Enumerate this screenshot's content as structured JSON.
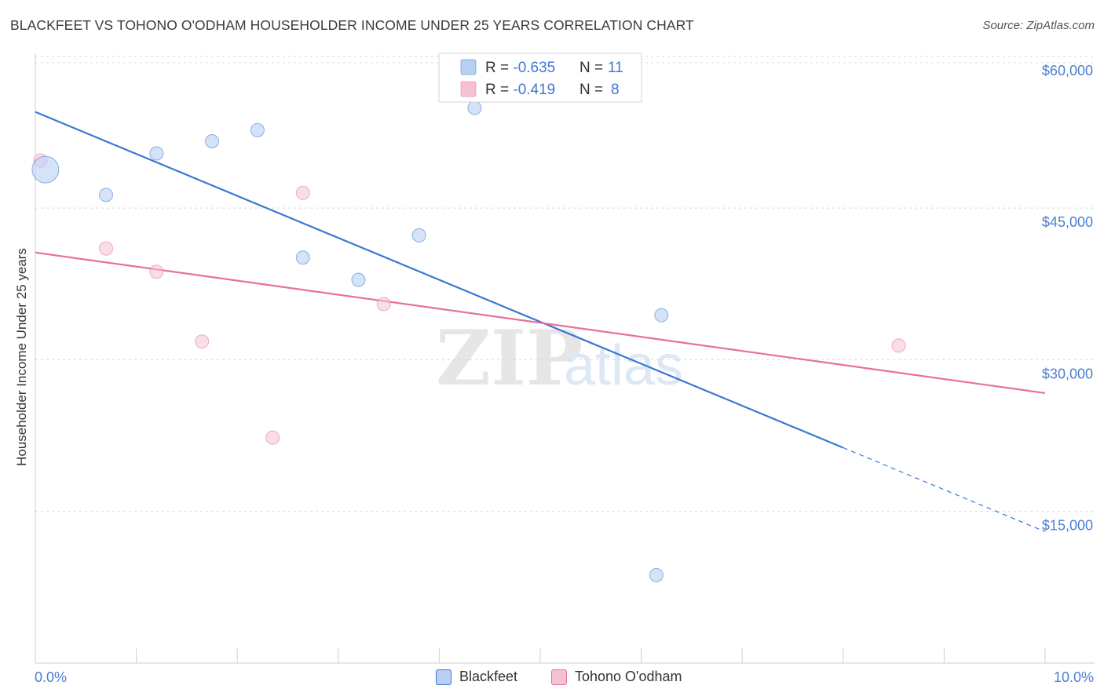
{
  "title": "BLACKFEET VS TOHONO O'ODHAM HOUSEHOLDER INCOME UNDER 25 YEARS CORRELATION CHART",
  "source": "Source: ZipAtlas.com",
  "watermark": {
    "zip": "ZIP",
    "atlas": "atlas"
  },
  "colors": {
    "blackfeet": "#3a78d4",
    "blackfeet_fill": "#b8d1f3",
    "tohono": "#e8709a",
    "tohono_fill": "#f6c2d2",
    "axis_label": "#4a7fd4",
    "grid": "#d8d8d8"
  },
  "legend": {
    "rows": [
      {
        "r_label": "R = ",
        "r_value": "-0.635",
        "n_label": "N = ",
        "n_value": "11"
      },
      {
        "r_label": "R = ",
        "r_value": "-0.419",
        "n_label": "N = ",
        "n_value": "8"
      }
    ]
  },
  "bottom_legend": [
    "Blackfeet",
    "Tohono O'odham"
  ],
  "chart_data": {
    "type": "scatter",
    "title": "BLACKFEET VS TOHONO O'ODHAM HOUSEHOLDER INCOME UNDER 25 YEARS CORRELATION CHART",
    "xlabel": "",
    "ylabel": "Householder Income Under 25 years",
    "xlim": [
      0,
      10
    ],
    "ylim": [
      0,
      62000
    ],
    "x_tick_labels": [
      "0.0%",
      "10.0%"
    ],
    "y_ticks": [
      15000,
      30000,
      45000,
      60000
    ],
    "y_tick_labels": [
      "$15,000",
      "$30,000",
      "$45,000",
      "$60,000"
    ],
    "grid": true,
    "legend_position": "top-center",
    "series": [
      {
        "name": "Blackfeet",
        "R": -0.635,
        "N": 11,
        "points": [
          {
            "x": 0.1,
            "y": 48800,
            "big": true
          },
          {
            "x": 0.7,
            "y": 46300
          },
          {
            "x": 1.2,
            "y": 50400
          },
          {
            "x": 1.75,
            "y": 51600
          },
          {
            "x": 2.2,
            "y": 52700
          },
          {
            "x": 2.65,
            "y": 40100
          },
          {
            "x": 3.2,
            "y": 37900
          },
          {
            "x": 3.8,
            "y": 42300
          },
          {
            "x": 4.35,
            "y": 54900
          },
          {
            "x": 6.15,
            "y": 8700
          },
          {
            "x": 6.2,
            "y": 34400
          }
        ],
        "trend": {
          "x0": 0,
          "y0": 54500,
          "x1": 8.0,
          "y1": 21300,
          "dashed_to_x": 10.0,
          "dashed_y1": 13000
        }
      },
      {
        "name": "Tohono O'odham",
        "R": -0.419,
        "N": 8,
        "points": [
          {
            "x": 0.05,
            "y": 49700
          },
          {
            "x": 0.7,
            "y": 41000
          },
          {
            "x": 1.2,
            "y": 38700
          },
          {
            "x": 1.65,
            "y": 31800
          },
          {
            "x": 2.35,
            "y": 22300
          },
          {
            "x": 2.65,
            "y": 46500
          },
          {
            "x": 3.45,
            "y": 35500
          },
          {
            "x": 8.55,
            "y": 31400
          }
        ],
        "trend": {
          "x0": 0,
          "y0": 40600,
          "x1": 10.0,
          "y1": 26700
        }
      }
    ]
  }
}
